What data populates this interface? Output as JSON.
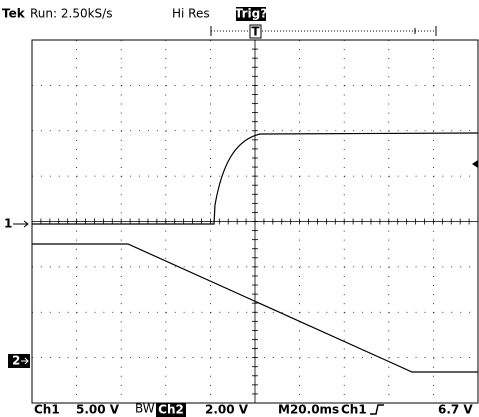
{
  "header": {
    "brand": "Tek",
    "status": "Run: 2.50kS/s",
    "mode": "Hi Res",
    "trigger": "Trig?",
    "trigger_marker": "T"
  },
  "markers": {
    "ch1": "1",
    "ch2": "2"
  },
  "footer": {
    "ch1": "Ch1",
    "ch1_scale": "5.00 V",
    "bw": "BW",
    "ch2": "Ch2",
    "ch2_scale": "2.00 V",
    "timebase": "M20.0ms",
    "trig_source": "Ch1",
    "trig_level": "6.7 V"
  }
}
